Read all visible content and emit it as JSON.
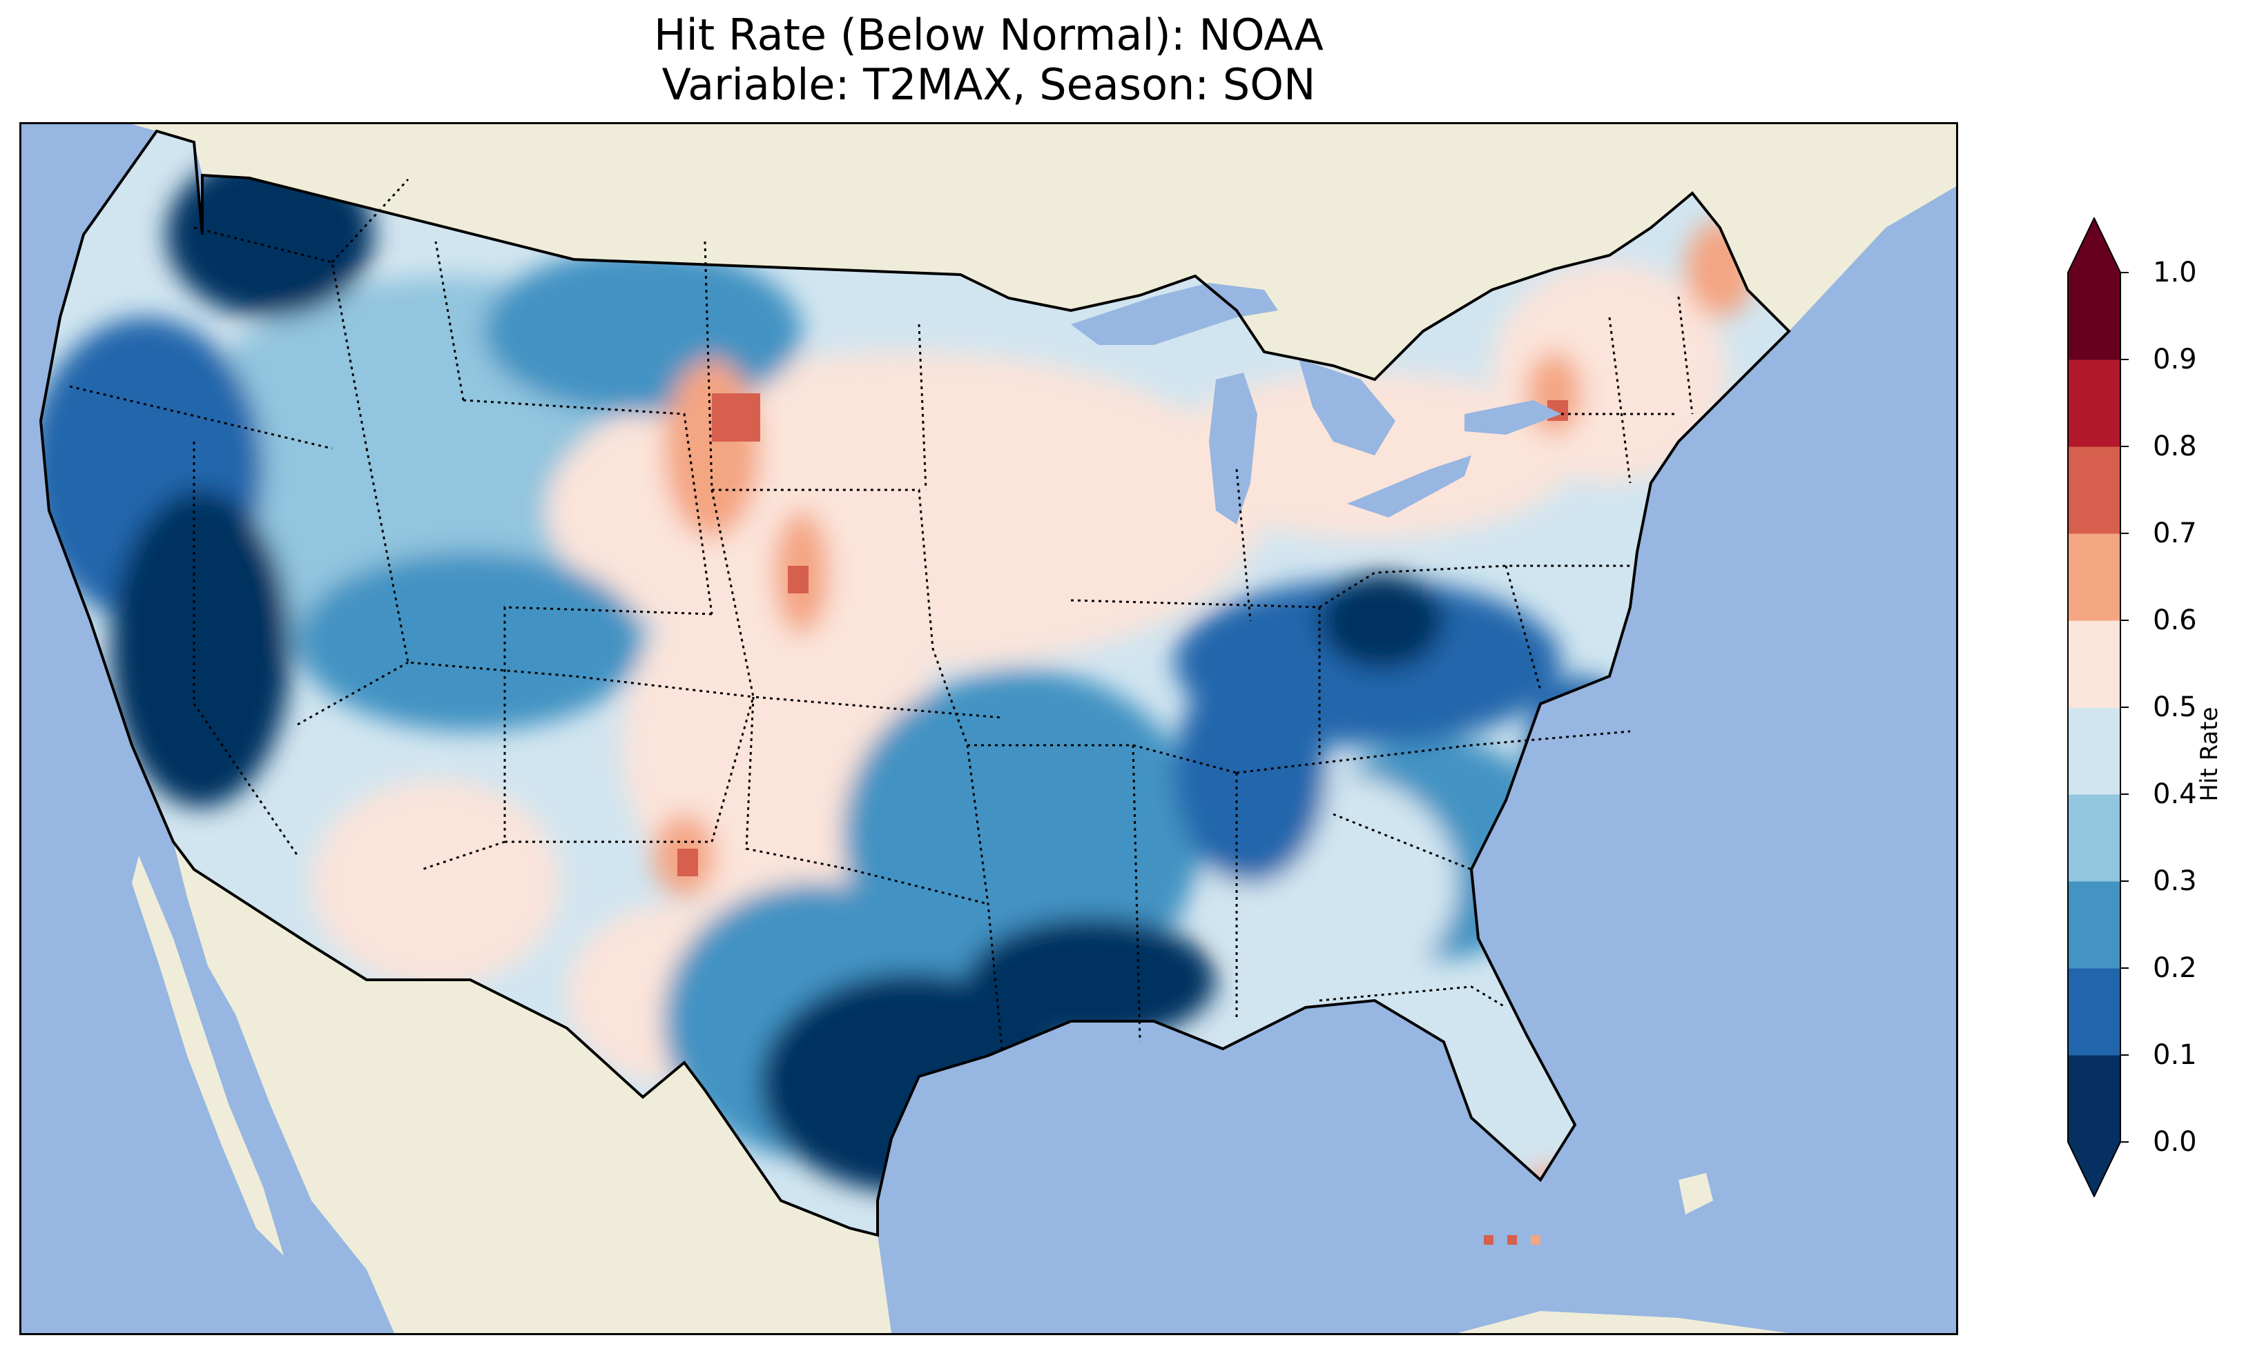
{
  "title": {
    "line1": "Hit Rate (Below Normal): NOAA",
    "line2": "Variable: T2MAX, Season: SON"
  },
  "colors": {
    "ocean": "#97b6e1",
    "land": "#efedd9",
    "lakes": "#97b6e1",
    "coast": "#000000"
  },
  "colorbar": {
    "label": "Hit Rate",
    "ticks": [
      "0.0",
      "0.1",
      "0.2",
      "0.3",
      "0.4",
      "0.5",
      "0.6",
      "0.7",
      "0.8",
      "0.9",
      "1.0"
    ],
    "bins": [
      "#053061",
      "#2166ac",
      "#4393c3",
      "#92c5de",
      "#d1e5f0",
      "#fbe4da",
      "#f4a582",
      "#d6604d",
      "#b2182b",
      "#67001f"
    ],
    "extend_min_color": "#053061",
    "extend_max_color": "#67001f"
  },
  "map_regions": [
    {
      "name": "northwest",
      "value": 0.05
    },
    {
      "name": "pacific-coast",
      "value": 0.15
    },
    {
      "name": "california-central-valley",
      "value": 0.05
    },
    {
      "name": "northern-rockies",
      "value": 0.25
    },
    {
      "name": "northern-plains",
      "value": 0.55
    },
    {
      "name": "wyoming-colorado-peak",
      "value": 0.65
    },
    {
      "name": "four-corners",
      "value": 0.45
    },
    {
      "name": "new-mexico-peak",
      "value": 0.65
    },
    {
      "name": "west-texas",
      "value": 0.55
    },
    {
      "name": "south-central",
      "value": 0.25
    },
    {
      "name": "texas-gulf",
      "value": 0.05
    },
    {
      "name": "ohio-valley",
      "value": 0.15
    },
    {
      "name": "southeast",
      "value": 0.35
    },
    {
      "name": "great-lakes",
      "value": 0.55
    },
    {
      "name": "new-england",
      "value": 0.55
    },
    {
      "name": "south-florida",
      "value": 0.65
    }
  ]
}
